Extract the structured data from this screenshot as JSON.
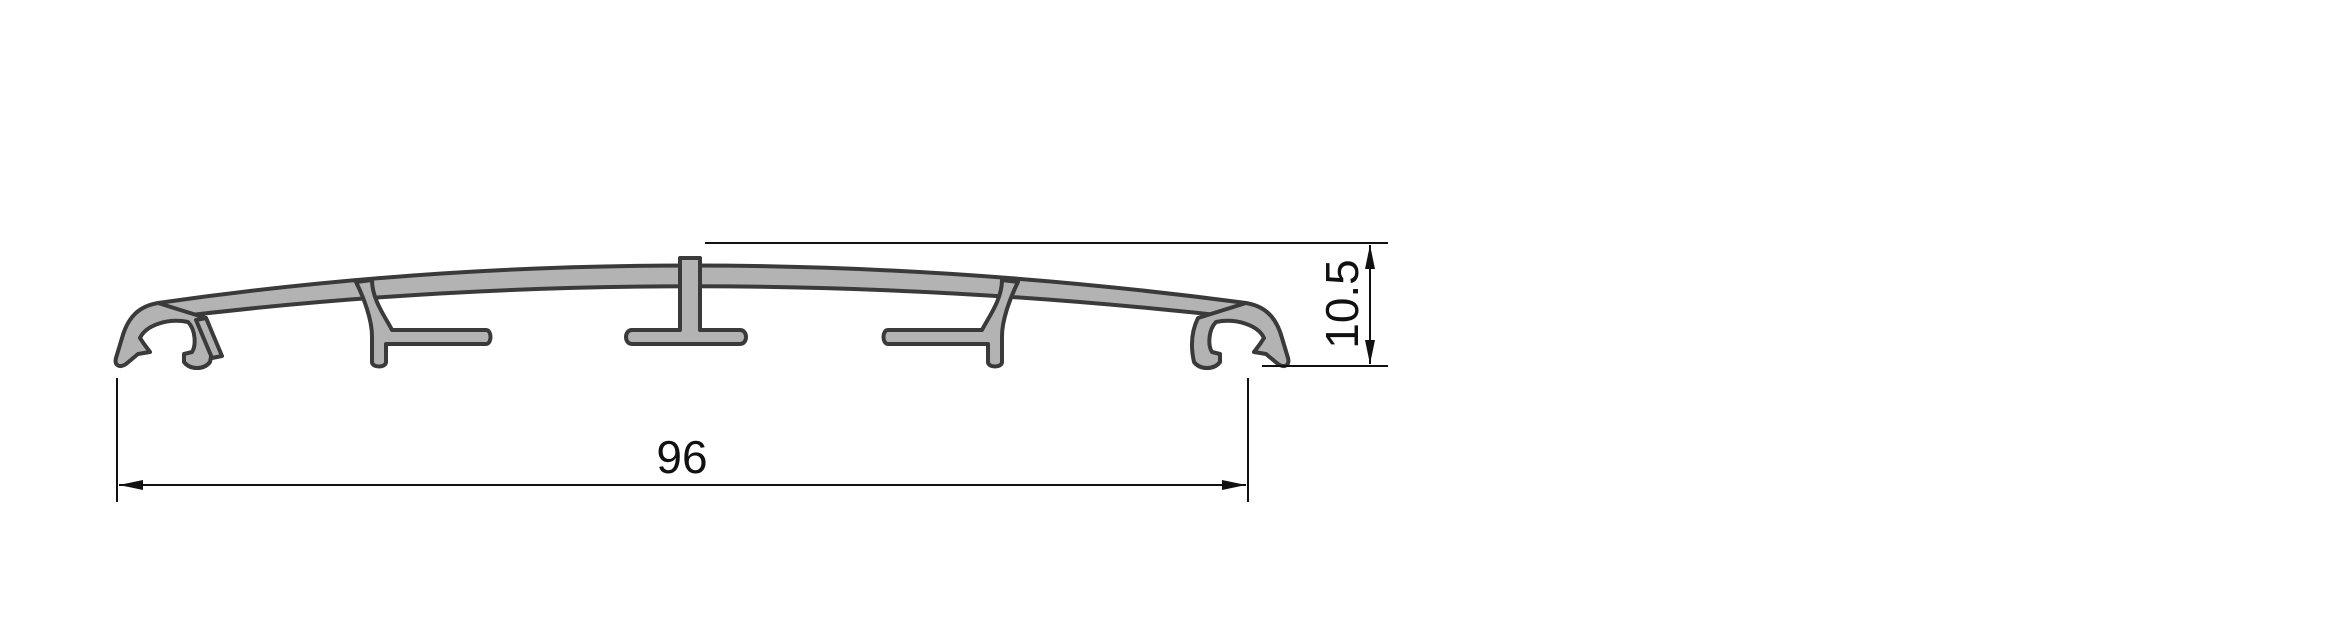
{
  "drawing": {
    "profile_fill": "#b3b3b3",
    "profile_stroke": "#3a3a3a",
    "dimensions": {
      "width_label": "96",
      "height_label": "10.5"
    }
  }
}
